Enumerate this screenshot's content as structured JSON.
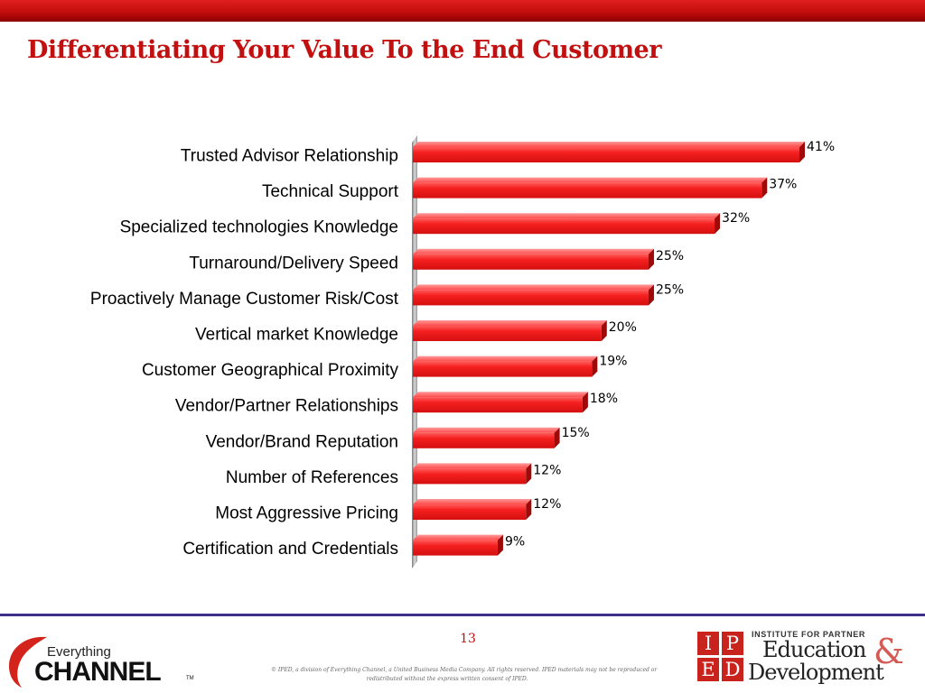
{
  "slide": {
    "title": "Differentiating Your Value To the End Customer",
    "page_number": "13",
    "copyright_line1": "© IPED, a division of Everything Channel, a United Business Media Company. All rights reserved. IPED materials may not be reproduced or",
    "copyright_line2": "redistributed without the express written consent of IPED."
  },
  "logos": {
    "everything_channel_line1": "Everything",
    "everything_channel_line2": "CHANNEL",
    "everything_channel_tm": "TM",
    "iped_letters": [
      "I",
      "P",
      "E",
      "D"
    ],
    "iped_institute": "INSTITUTE FOR PARTNER",
    "iped_education": "Education",
    "iped_ampersand": "&",
    "iped_development": "Development"
  },
  "colors": {
    "accent": "#c21010",
    "bar": "#f01818",
    "footer_rule": "#3e2f8a"
  },
  "chart_data": {
    "type": "bar",
    "orientation": "horizontal",
    "categories": [
      "Trusted Advisor Relationship",
      "Technical Support",
      "Specialized technologies Knowledge",
      "Turnaround/Delivery Speed",
      "Proactively Manage Customer Risk/Cost",
      "Vertical market Knowledge",
      "Customer Geographical Proximity",
      "Vendor/Partner Relationships",
      "Vendor/Brand Reputation",
      "Number of References",
      "Most Aggressive Pricing",
      "Certification and Credentials"
    ],
    "values": [
      41,
      37,
      32,
      25,
      25,
      20,
      19,
      18,
      15,
      12,
      12,
      9
    ],
    "value_labels": [
      "41%",
      "37%",
      "32%",
      "25%",
      "25%",
      "20%",
      "19%",
      "18%",
      "15%",
      "12%",
      "12%",
      "9%"
    ],
    "unit": "%",
    "xlim": [
      0,
      41
    ],
    "grid": false,
    "legend": "none"
  }
}
